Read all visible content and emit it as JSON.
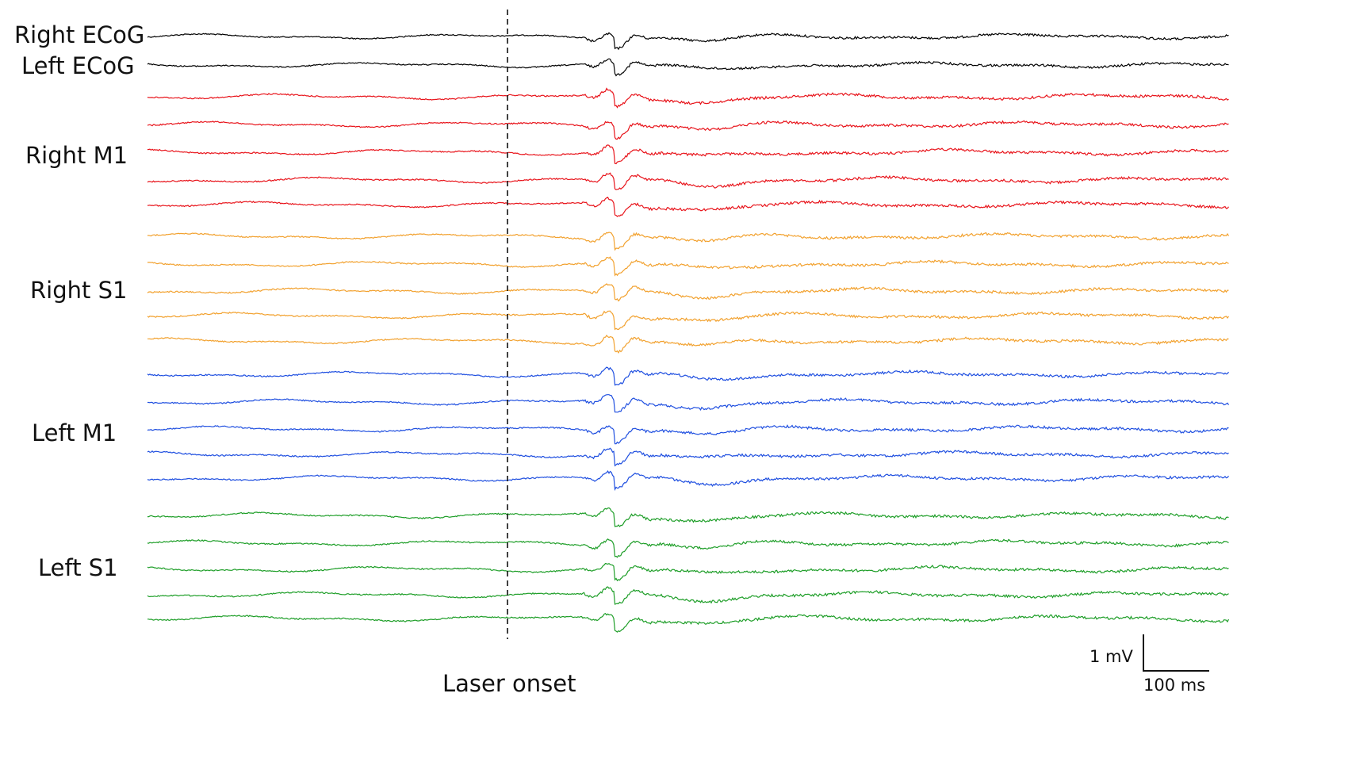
{
  "chart_data": {
    "type": "line",
    "description_source": "multi-channel electrophysiology traces",
    "groups": [
      {
        "name": "Right ECoG",
        "color": "#000000",
        "channels": 1
      },
      {
        "name": "Left ECoG",
        "color": "#000000",
        "channels": 1
      },
      {
        "name": "Right M1",
        "color": "#e8141b",
        "channels": 5
      },
      {
        "name": "Right S1",
        "color": "#f2a12e",
        "channels": 5
      },
      {
        "name": "Left M1",
        "color": "#1f4fe0",
        "channels": 5
      },
      {
        "name": "Left S1",
        "color": "#1e9e28",
        "channels": 5
      }
    ],
    "event_marker": {
      "label": "Laser onset",
      "style": "dashed"
    },
    "scale_bar": {
      "vertical_label": "1 mV",
      "horizontal_label": "100 ms"
    }
  }
}
